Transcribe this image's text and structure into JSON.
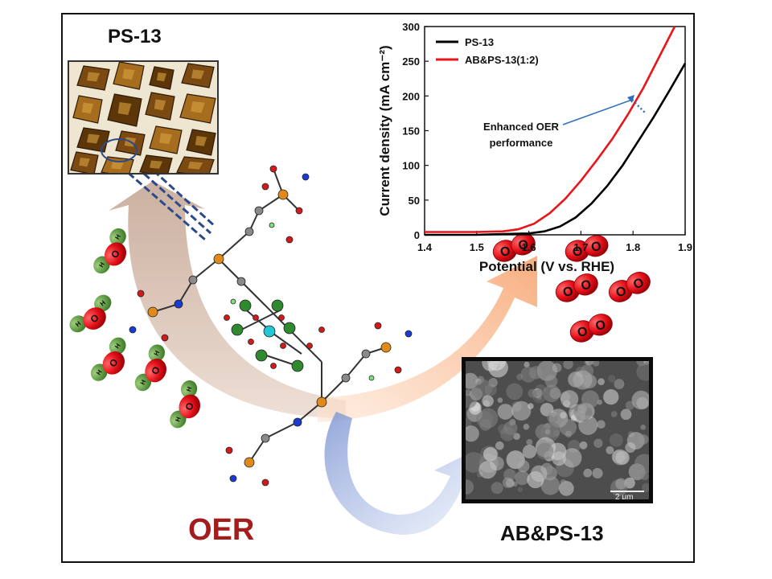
{
  "figure": {
    "top_micrograph_label": "PS-13",
    "reaction_label": "OER",
    "sem_label": "AB&PS-13",
    "sem_scalebar": "2 μm",
    "molecule_label": "O",
    "h2o_labels": [
      "H",
      "O",
      "H"
    ]
  },
  "colors": {
    "oer_text": "#a31d1d",
    "ps13_line": "#000000",
    "ab_line": "#e8151b",
    "annotation_arrow": "#2f6fc0",
    "orange_arrow": "#f7b48c",
    "brown_arrow": "#c9a18a",
    "blue_arrow": "#8fa6d9"
  },
  "chart_data": {
    "type": "line",
    "title": "",
    "xlabel": "Potential (V vs. RHE)",
    "ylabel": "Current density (mA cm⁻²)",
    "xlim": [
      1.4,
      1.9
    ],
    "ylim": [
      0,
      300
    ],
    "xticks": [
      "1.4",
      "1.5",
      "1.6",
      "1.7",
      "1.8",
      "1.9"
    ],
    "yticks": [
      "0",
      "50",
      "100",
      "150",
      "200",
      "250",
      "300"
    ],
    "legend_position": "top-left",
    "annotation": "Enhanced OER performance",
    "annotation_lines": [
      "Enhanced OER",
      "performance"
    ],
    "series": [
      {
        "name": "PS-13",
        "color": "#000000",
        "x": [
          1.4,
          1.5,
          1.55,
          1.6,
          1.63,
          1.66,
          1.69,
          1.72,
          1.75,
          1.78,
          1.81,
          1.84,
          1.87,
          1.9
        ],
        "y": [
          0,
          0,
          1,
          2,
          5,
          12,
          25,
          45,
          70,
          100,
          135,
          170,
          208,
          247
        ]
      },
      {
        "name": "AB&PS-13(1:2)",
        "color": "#e8151b",
        "x": [
          1.4,
          1.5,
          1.55,
          1.58,
          1.61,
          1.64,
          1.67,
          1.7,
          1.73,
          1.76,
          1.79,
          1.82,
          1.85,
          1.88
        ],
        "y": [
          4,
          4,
          5,
          8,
          16,
          31,
          52,
          78,
          107,
          138,
          173,
          212,
          256,
          300
        ]
      }
    ]
  }
}
